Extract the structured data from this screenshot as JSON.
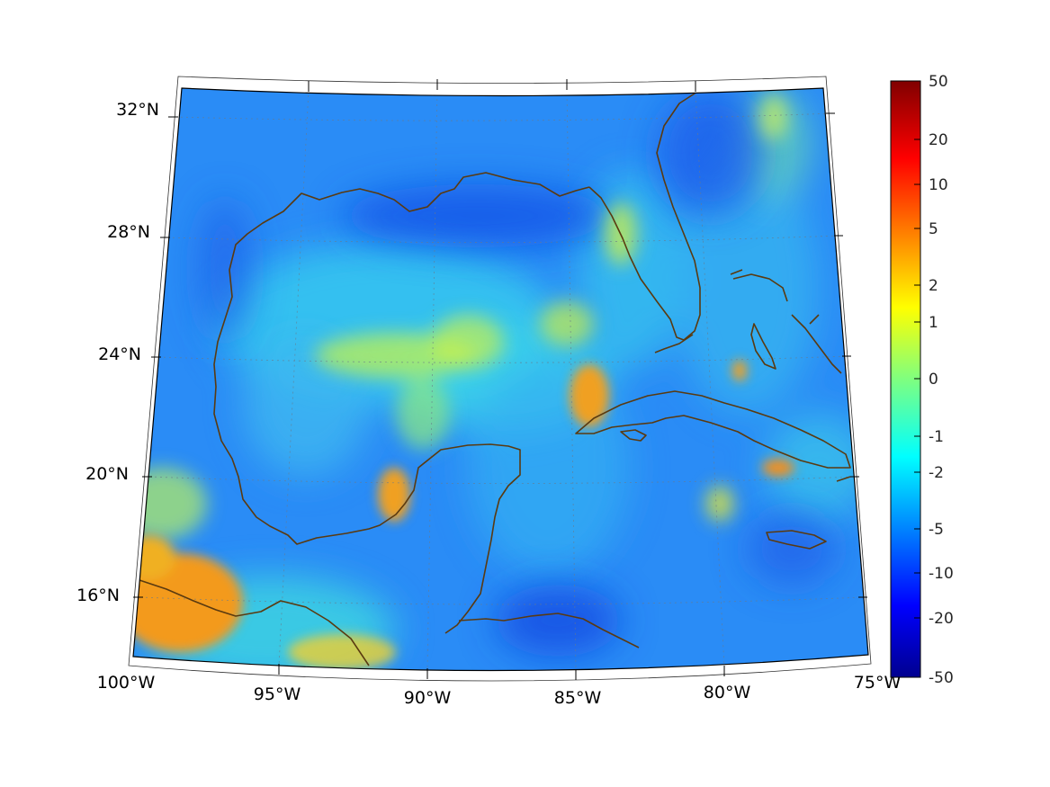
{
  "map": {
    "longitude_labels": [
      "100°W",
      "95°W",
      "90°W",
      "85°W",
      "80°W",
      "75°W"
    ],
    "latitude_labels": [
      "32°N",
      "28°N",
      "24°N",
      "20°N",
      "16°N"
    ],
    "background_color": "#2a8cf6",
    "coastline_color": "#5a3a10",
    "hotspot_areas": [
      "western Cuba / Yucatan Channel",
      "Campeche coast",
      "southern Mexico",
      "southeastern Cuba",
      "Bahamas"
    ]
  },
  "colorbar": {
    "tick_labels": [
      "50",
      "20",
      "10",
      "5",
      "2",
      "1",
      "0",
      "-1",
      "-2",
      "-5",
      "-10",
      "-20",
      "-50"
    ],
    "colormap": "jet",
    "max": 50,
    "min": -50
  }
}
